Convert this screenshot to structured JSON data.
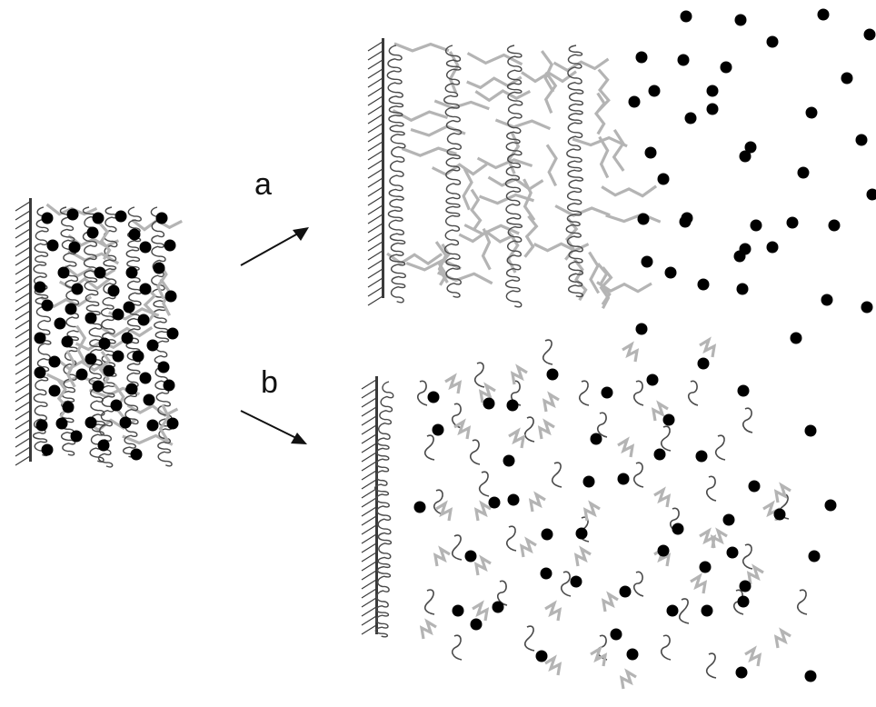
{
  "labels": {
    "a": "a",
    "b": "b"
  },
  "colors": {
    "background": "#ffffff",
    "particle": "#000000",
    "dark_chain": "#4a4a4a",
    "light_chain": "#b4b4b4",
    "wall": "#3a3a3a",
    "hatch": "#3a3a3a",
    "arrow": "#111111"
  },
  "panels": [
    {
      "name": "initial-brush",
      "description_free": true
    },
    {
      "name": "brush-a",
      "description_free": true
    },
    {
      "name": "brush-b",
      "description_free": true
    }
  ]
}
